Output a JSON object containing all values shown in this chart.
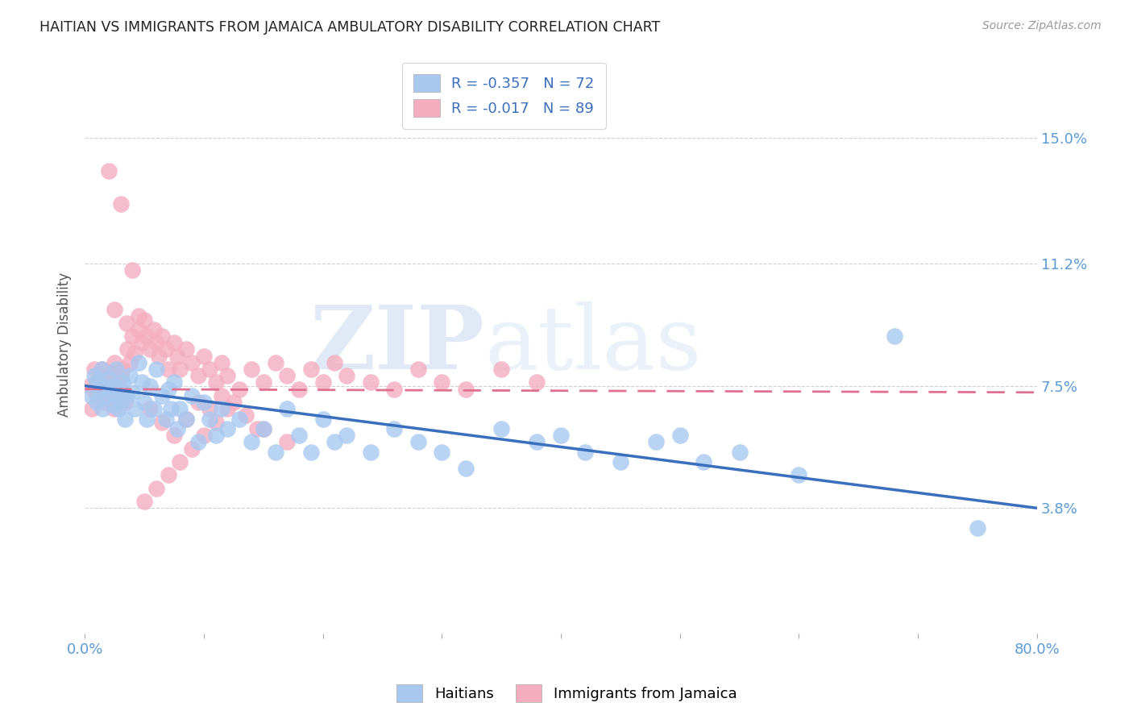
{
  "title": "HAITIAN VS IMMIGRANTS FROM JAMAICA AMBULATORY DISABILITY CORRELATION CHART",
  "source": "Source: ZipAtlas.com",
  "ylabel": "Ambulatory Disability",
  "xlim": [
    0.0,
    0.8
  ],
  "ylim": [
    0.0,
    0.175
  ],
  "ytick_vals": [
    0.0,
    0.038,
    0.075,
    0.112,
    0.15
  ],
  "ytick_labels": [
    "",
    "3.8%",
    "7.5%",
    "11.2%",
    "15.0%"
  ],
  "xtick_vals": [
    0.0,
    0.1,
    0.2,
    0.3,
    0.4,
    0.5,
    0.6,
    0.7,
    0.8
  ],
  "xtick_labels": [
    "0.0%",
    "",
    "",
    "",
    "",
    "",
    "",
    "",
    "80.0%"
  ],
  "watermark": "ZIPatlas",
  "legend_label_haitian": "R = -0.357   N = 72",
  "legend_label_jamaica": "R = -0.017   N = 89",
  "legend_label_bottom_haitian": "Haitians",
  "legend_label_bottom_jamaica": "Immigrants from Jamaica",
  "haitian_color": "#a8c8f0",
  "jamaica_color": "#f4aec0",
  "haitian_line_color": "#3a6fbd",
  "jamaica_line_color": "#e07090",
  "tick_color": "#5b9bd5",
  "grid_color": "#d0d0d0",
  "background_color": "#ffffff",
  "haitian_x": [
    0.005,
    0.008,
    0.01,
    0.01,
    0.012,
    0.014,
    0.015,
    0.016,
    0.018,
    0.02,
    0.022,
    0.024,
    0.025,
    0.026,
    0.028,
    0.03,
    0.03,
    0.032,
    0.034,
    0.035,
    0.038,
    0.04,
    0.042,
    0.045,
    0.048,
    0.05,
    0.052,
    0.055,
    0.058,
    0.06,
    0.065,
    0.068,
    0.07,
    0.072,
    0.075,
    0.078,
    0.08,
    0.085,
    0.09,
    0.095,
    0.1,
    0.105,
    0.11,
    0.115,
    0.12,
    0.13,
    0.14,
    0.15,
    0.16,
    0.17,
    0.18,
    0.19,
    0.2,
    0.21,
    0.22,
    0.24,
    0.26,
    0.28,
    0.3,
    0.32,
    0.35,
    0.38,
    0.4,
    0.42,
    0.45,
    0.48,
    0.5,
    0.52,
    0.55,
    0.6,
    0.68,
    0.75
  ],
  "haitian_y": [
    0.072,
    0.078,
    0.07,
    0.076,
    0.074,
    0.08,
    0.068,
    0.075,
    0.072,
    0.077,
    0.073,
    0.069,
    0.075,
    0.08,
    0.068,
    0.074,
    0.07,
    0.076,
    0.065,
    0.072,
    0.078,
    0.073,
    0.068,
    0.082,
    0.076,
    0.07,
    0.065,
    0.075,
    0.068,
    0.08,
    0.072,
    0.065,
    0.074,
    0.068,
    0.076,
    0.062,
    0.068,
    0.065,
    0.072,
    0.058,
    0.07,
    0.065,
    0.06,
    0.068,
    0.062,
    0.065,
    0.058,
    0.062,
    0.055,
    0.068,
    0.06,
    0.055,
    0.065,
    0.058,
    0.06,
    0.055,
    0.062,
    0.058,
    0.055,
    0.05,
    0.062,
    0.058,
    0.06,
    0.055,
    0.052,
    0.058,
    0.06,
    0.052,
    0.055,
    0.048,
    0.09,
    0.032
  ],
  "jamaica_x": [
    0.004,
    0.006,
    0.008,
    0.01,
    0.01,
    0.012,
    0.014,
    0.015,
    0.016,
    0.018,
    0.02,
    0.022,
    0.024,
    0.025,
    0.026,
    0.028,
    0.03,
    0.03,
    0.032,
    0.034,
    0.036,
    0.038,
    0.04,
    0.042,
    0.045,
    0.048,
    0.05,
    0.052,
    0.055,
    0.058,
    0.06,
    0.062,
    0.065,
    0.068,
    0.07,
    0.075,
    0.078,
    0.08,
    0.085,
    0.09,
    0.095,
    0.1,
    0.105,
    0.11,
    0.115,
    0.12,
    0.13,
    0.14,
    0.15,
    0.16,
    0.17,
    0.18,
    0.19,
    0.2,
    0.21,
    0.22,
    0.24,
    0.26,
    0.28,
    0.3,
    0.32,
    0.35,
    0.38,
    0.12,
    0.15,
    0.17,
    0.02,
    0.03,
    0.04,
    0.05,
    0.06,
    0.07,
    0.08,
    0.09,
    0.1,
    0.11,
    0.025,
    0.035,
    0.045,
    0.055,
    0.065,
    0.075,
    0.085,
    0.095,
    0.105,
    0.115,
    0.125,
    0.135,
    0.145
  ],
  "jamaica_y": [
    0.075,
    0.068,
    0.08,
    0.076,
    0.072,
    0.078,
    0.074,
    0.08,
    0.07,
    0.077,
    0.073,
    0.079,
    0.068,
    0.082,
    0.076,
    0.072,
    0.078,
    0.074,
    0.08,
    0.07,
    0.086,
    0.082,
    0.09,
    0.085,
    0.092,
    0.088,
    0.095,
    0.09,
    0.086,
    0.092,
    0.088,
    0.084,
    0.09,
    0.086,
    0.08,
    0.088,
    0.084,
    0.08,
    0.086,
    0.082,
    0.078,
    0.084,
    0.08,
    0.076,
    0.082,
    0.078,
    0.074,
    0.08,
    0.076,
    0.082,
    0.078,
    0.074,
    0.08,
    0.076,
    0.082,
    0.078,
    0.076,
    0.074,
    0.08,
    0.076,
    0.074,
    0.08,
    0.076,
    0.068,
    0.062,
    0.058,
    0.14,
    0.13,
    0.11,
    0.04,
    0.044,
    0.048,
    0.052,
    0.056,
    0.06,
    0.064,
    0.098,
    0.094,
    0.096,
    0.068,
    0.064,
    0.06,
    0.065,
    0.07,
    0.068,
    0.072,
    0.07,
    0.066,
    0.062
  ]
}
